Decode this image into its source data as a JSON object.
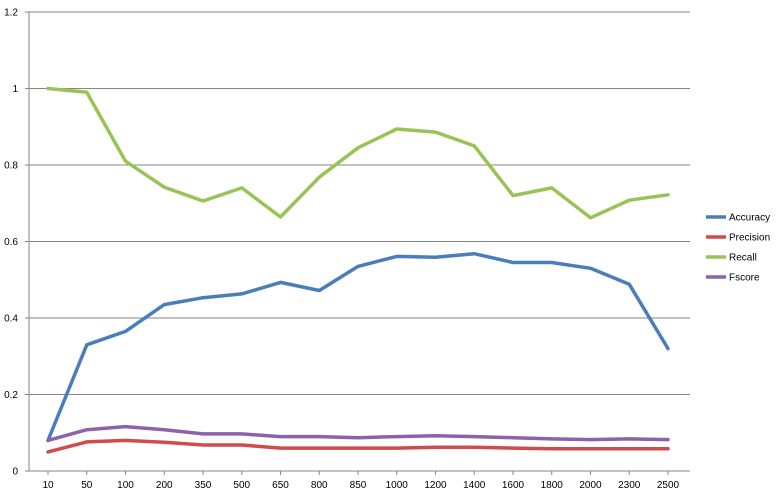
{
  "chart_data": {
    "type": "line",
    "categories": [
      "10",
      "50",
      "100",
      "200",
      "350",
      "500",
      "650",
      "800",
      "850",
      "1000",
      "1200",
      "1400",
      "1600",
      "1800",
      "2000",
      "2300",
      "2500"
    ],
    "series": [
      {
        "name": "Accuracy",
        "color": "#4a7ebb",
        "values": [
          0.08,
          0.33,
          0.365,
          0.435,
          0.453,
          0.463,
          0.493,
          0.472,
          0.535,
          0.561,
          0.559,
          0.568,
          0.545,
          0.545,
          0.53,
          0.488,
          0.32
        ]
      },
      {
        "name": "Precision",
        "color": "#d24b4b",
        "values": [
          0.05,
          0.076,
          0.08,
          0.075,
          0.068,
          0.068,
          0.06,
          0.06,
          0.06,
          0.06,
          0.062,
          0.062,
          0.06,
          0.058,
          0.058,
          0.058,
          0.058
        ]
      },
      {
        "name": "Recall",
        "color": "#98c455",
        "values": [
          1.0,
          0.99,
          0.81,
          0.742,
          0.706,
          0.74,
          0.664,
          0.768,
          0.845,
          0.894,
          0.886,
          0.85,
          0.72,
          0.74,
          0.662,
          0.708,
          0.722
        ]
      },
      {
        "name": "Fscore",
        "color": "#8c62aa",
        "values": [
          0.08,
          0.108,
          0.116,
          0.108,
          0.097,
          0.097,
          0.09,
          0.09,
          0.087,
          0.09,
          0.092,
          0.09,
          0.087,
          0.084,
          0.082,
          0.084,
          0.082
        ]
      }
    ],
    "y_ticks": [
      "0",
      "0.2",
      "0.4",
      "0.6",
      "0.8",
      "1",
      "1.2"
    ],
    "ylim": [
      0,
      1.2
    ],
    "grid": "horizontal",
    "legend_position": "right"
  }
}
